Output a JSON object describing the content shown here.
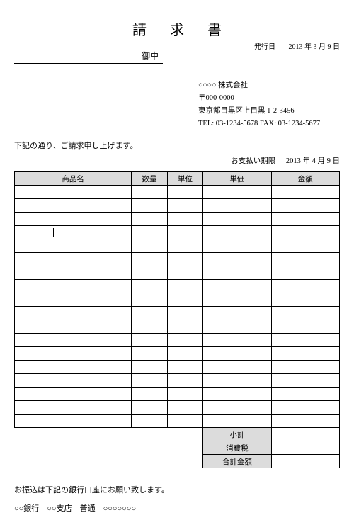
{
  "document": {
    "title": "請 求 書",
    "issue_label": "発行日",
    "issue_date": "2013 年 3 月 9 日",
    "recipient_suffix": "御中",
    "company": {
      "name": "○○○○ 株式会社",
      "postal": "〒000-0000",
      "address": "東京都目黒区上目黒 1-2-3456",
      "contact": "TEL: 03-1234-5678  FAX: 03-1234-5677"
    },
    "intro": "下記の通り、ご請求申し上げます。",
    "due_label": "お支払い期限",
    "due_date": "2013 年 4 月 9 日",
    "table": {
      "headers": {
        "name": "商品名",
        "qty": "数量",
        "unit": "単位",
        "price": "単価",
        "amount": "金額"
      },
      "body_row_count": 18,
      "cursor_row_index": 3,
      "summary": {
        "subtotal_label": "小計",
        "tax_label": "消費税",
        "total_label": "合計金額",
        "subtotal_value": "",
        "tax_value": "",
        "total_value": ""
      },
      "header_bg": "#dcdcdc",
      "border_color": "#000000"
    },
    "bank_note": "お振込は下記の銀行口座にお願い致します。",
    "bank_line": "○○銀行　○○支店　普通　○○○○○○○"
  }
}
